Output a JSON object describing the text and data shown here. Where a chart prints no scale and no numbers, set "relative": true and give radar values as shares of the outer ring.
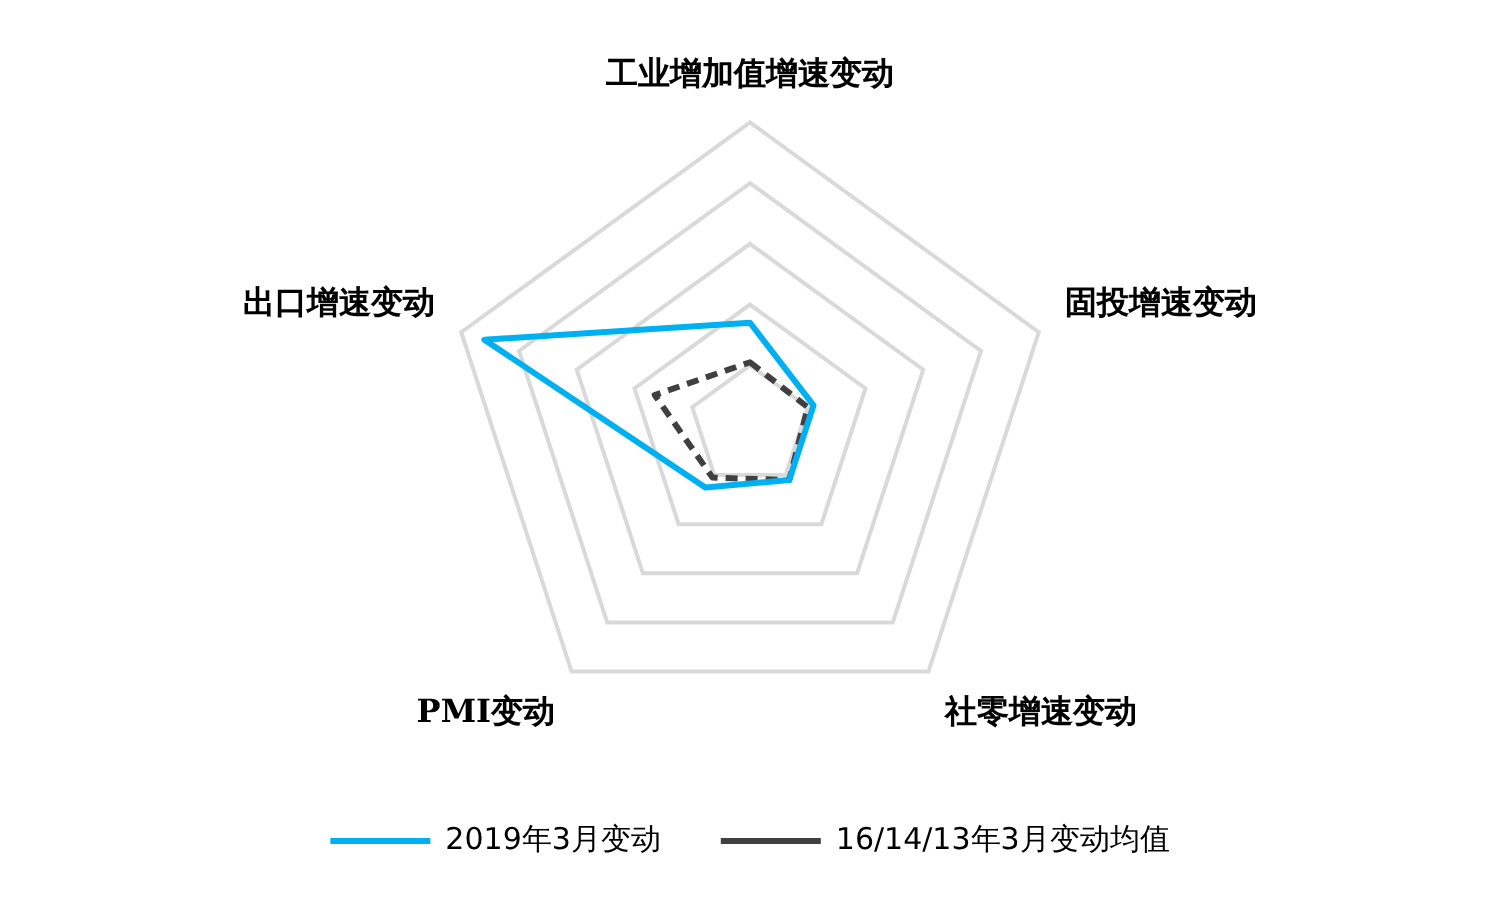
{
  "chart_data": {
    "type": "radar",
    "relative": true,
    "categories": [
      "工业增加值增速变动",
      "固投增速变动",
      "社零增速变动",
      "PMI变动",
      "出口增速变动"
    ],
    "series": [
      {
        "name": "2019年3月变动",
        "color": "#00b0f0",
        "values": [
          0.34,
          0.22,
          0.22,
          0.25,
          0.92
        ],
        "line_style": "solid"
      },
      {
        "name": "16/14/13年3月变动均值",
        "color": "#404040",
        "values": [
          0.21,
          0.2,
          0.22,
          0.21,
          0.33
        ],
        "line_style": "dashed"
      }
    ],
    "grid": true,
    "legend": "bottom",
    "marker": "none"
  }
}
